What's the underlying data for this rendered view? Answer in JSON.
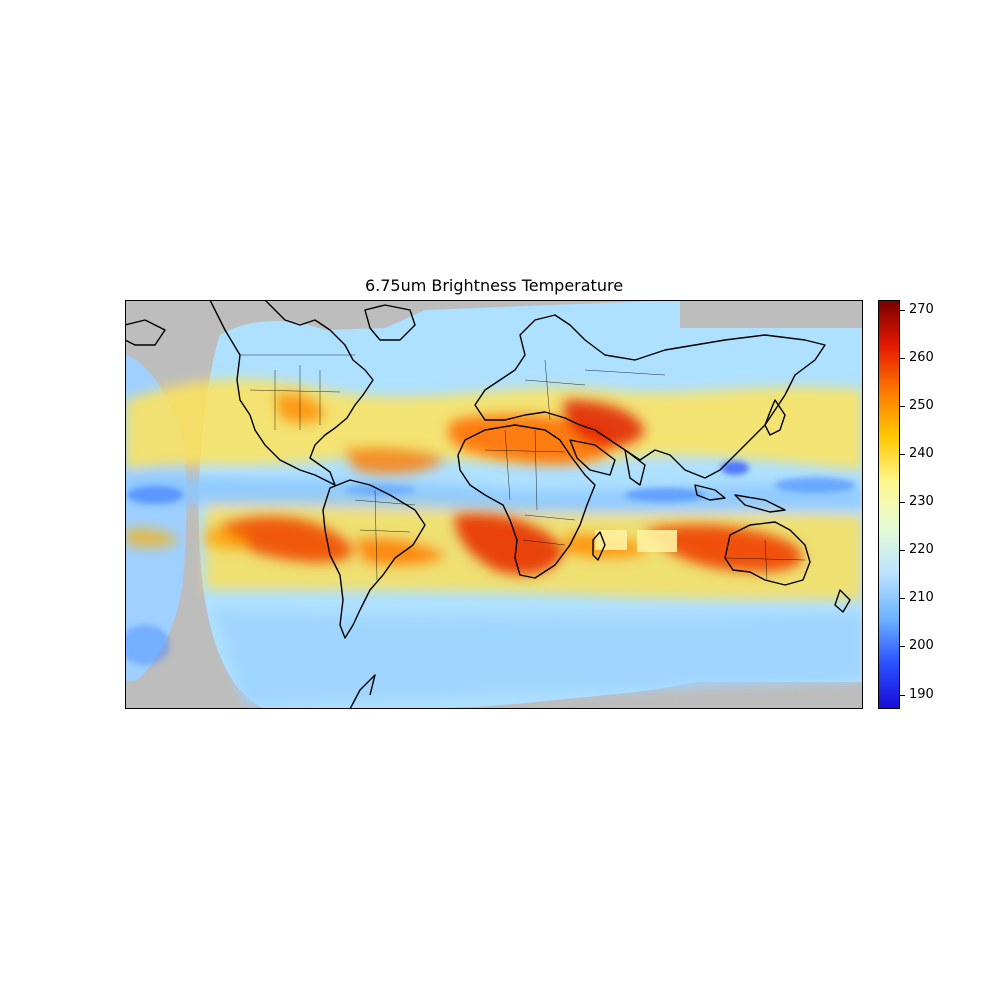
{
  "title": "6.75um Brightness Temperature",
  "colorbar": {
    "min": 187,
    "max": 272,
    "ticks": [
      "190",
      "200",
      "210",
      "220",
      "230",
      "240",
      "250",
      "260",
      "270"
    ],
    "colormap": [
      "#1a0dd9",
      "#2a52ff",
      "#6fb4ff",
      "#bde3ff",
      "#e6fbd4",
      "#fff78c",
      "#ffc800",
      "#ff7a00",
      "#e51a00",
      "#7a0000"
    ]
  },
  "map": {
    "no_data_color": "#bdbdbd",
    "coastline_color": "#000000"
  }
}
